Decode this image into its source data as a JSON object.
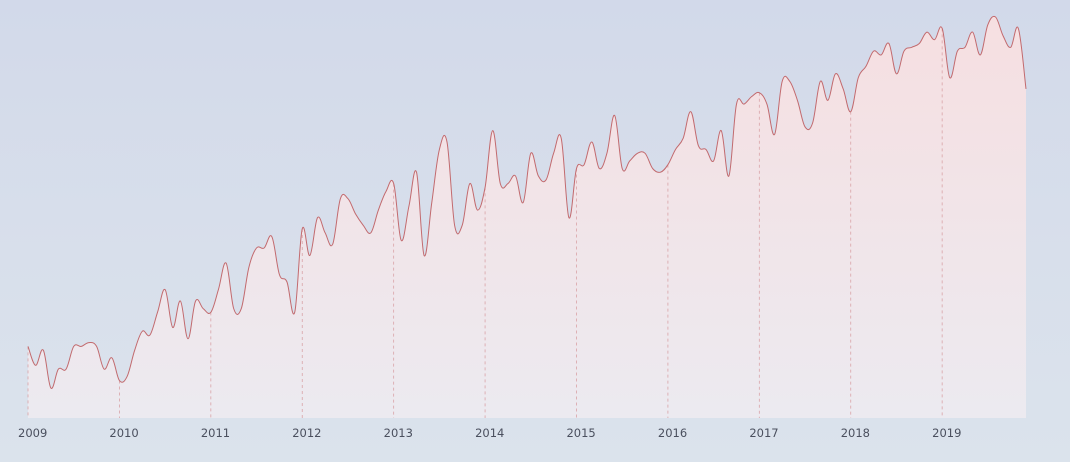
{
  "colors": {
    "line": "#c26a6e",
    "fill_top": "#f6dfe1",
    "fill_bottom": "#eceaf0",
    "gridline": "#d9a3a7"
  },
  "chart_data": {
    "type": "area",
    "title": "",
    "xlabel": "",
    "ylabel": "",
    "xlim": [
      2009,
      2019.95
    ],
    "ylim": [
      0,
      100
    ],
    "x_ticks": [
      2009,
      2010,
      2011,
      2012,
      2013,
      2014,
      2015,
      2016,
      2017,
      2018,
      2019
    ],
    "tick_labels": [
      "2009",
      "2010",
      "2011",
      "2012",
      "2013",
      "2014",
      "2015",
      "2016",
      "2017",
      "2018",
      "2019"
    ],
    "grid": "vertical dashed lines at year ticks",
    "legend": "none",
    "series": [
      {
        "x": [
          2009.0,
          2009.083,
          2009.167,
          2009.25,
          2009.333,
          2009.417,
          2009.5,
          2009.583,
          2009.667,
          2009.75,
          2009.833,
          2009.917,
          2010.0,
          2010.083,
          2010.167,
          2010.25,
          2010.333,
          2010.417,
          2010.5,
          2010.583,
          2010.667,
          2010.75,
          2010.833,
          2010.917,
          2011.0,
          2011.083,
          2011.167,
          2011.25,
          2011.333,
          2011.417,
          2011.5,
          2011.583,
          2011.667,
          2011.75,
          2011.833,
          2011.917,
          2012.0,
          2012.083,
          2012.167,
          2012.25,
          2012.333,
          2012.417,
          2012.5,
          2012.583,
          2012.667,
          2012.75,
          2012.833,
          2012.917,
          2013.0,
          2013.083,
          2013.167,
          2013.25,
          2013.333,
          2013.417,
          2013.5,
          2013.583,
          2013.667,
          2013.75,
          2013.833,
          2013.917,
          2014.0,
          2014.083,
          2014.167,
          2014.25,
          2014.333,
          2014.417,
          2014.5,
          2014.583,
          2014.667,
          2014.75,
          2014.833,
          2014.917,
          2015.0,
          2015.083,
          2015.167,
          2015.25,
          2015.333,
          2015.417,
          2015.5,
          2015.583,
          2015.667,
          2015.75,
          2015.833,
          2015.917,
          2016.0,
          2016.083,
          2016.167,
          2016.25,
          2016.333,
          2016.417,
          2016.5,
          2016.583,
          2016.667,
          2016.75,
          2016.833,
          2016.917,
          2017.0,
          2017.083,
          2017.167,
          2017.25,
          2017.333,
          2017.417,
          2017.5,
          2017.583,
          2017.667,
          2017.75,
          2017.833,
          2017.917,
          2018.0,
          2018.083,
          2018.167,
          2018.25,
          2018.333,
          2018.417,
          2018.5,
          2018.583,
          2018.667,
          2018.75,
          2018.833,
          2018.917,
          2019.0,
          2019.083,
          2019.167,
          2019.25,
          2019.333,
          2019.417,
          2019.5,
          2019.583,
          2019.667,
          2019.75,
          2019.833,
          2019.917
        ],
        "values": [
          16,
          11,
          15,
          5,
          10,
          10,
          16,
          16,
          17,
          16,
          10,
          13,
          7,
          8,
          15,
          20,
          19,
          25,
          31,
          21,
          28,
          18,
          28,
          26,
          25,
          31,
          38,
          26,
          26,
          37,
          42,
          42,
          45,
          35,
          33,
          25,
          47,
          40,
          50,
          46,
          43,
          55,
          55,
          51,
          48,
          46,
          52,
          57,
          59,
          44,
          53,
          62,
          40,
          54,
          68,
          70,
          48,
          48,
          59,
          52,
          58,
          73,
          59,
          59,
          61,
          54,
          67,
          61,
          60,
          67,
          71,
          50,
          63,
          64,
          70,
          63,
          67,
          77,
          63,
          65,
          67,
          67,
          63,
          62,
          64,
          68,
          71,
          78,
          69,
          68,
          65,
          73,
          61,
          80,
          80,
          82,
          83,
          80,
          72,
          86,
          86,
          81,
          74,
          75,
          86,
          81,
          88,
          84,
          78,
          87,
          90,
          94,
          93,
          96,
          88,
          94,
          95,
          96,
          99,
          97,
          100,
          87,
          94,
          95,
          99,
          93,
          101,
          103,
          98,
          95,
          100,
          84
        ]
      }
    ]
  }
}
